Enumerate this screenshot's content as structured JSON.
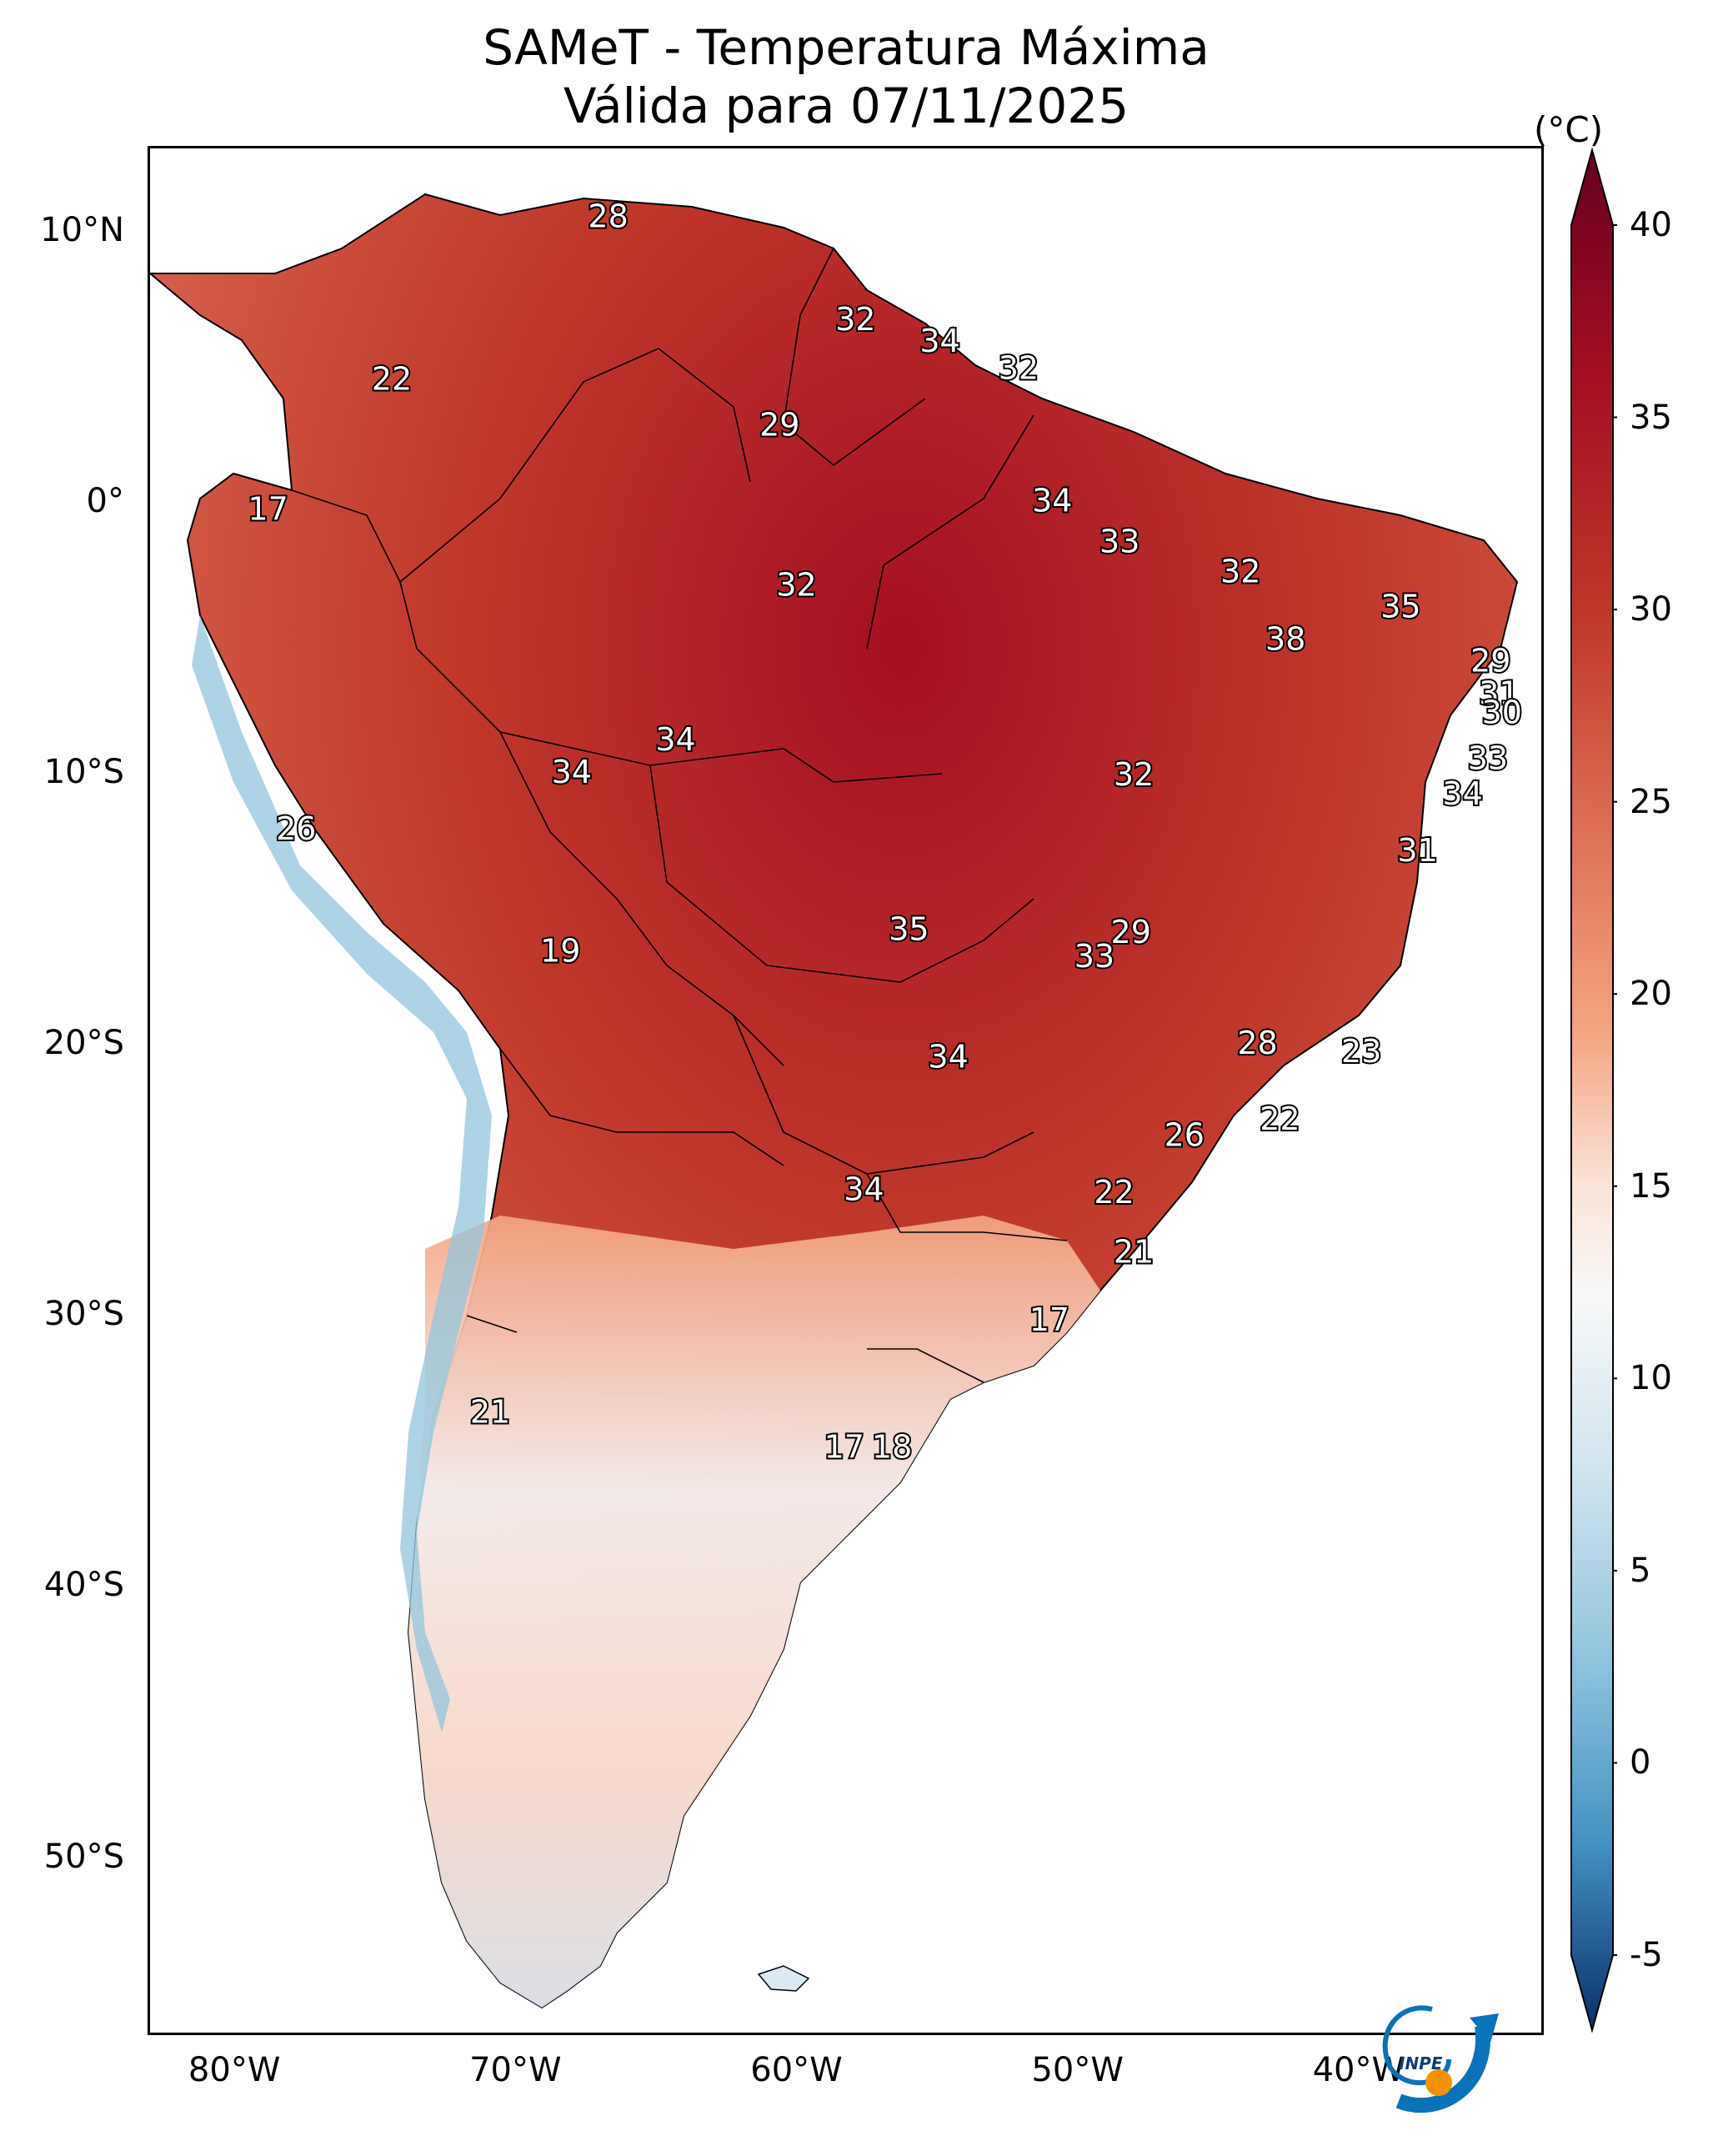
{
  "title": {
    "line1": "SAMeT - Temperatura Máxima",
    "line2": "Válida para 07/11/2025"
  },
  "map": {
    "extent": {
      "lon_min": -83,
      "lon_max": -33.5,
      "lat_min": -56.5,
      "lat_max": 13
    },
    "latitude_ticks": [
      {
        "lat": 10,
        "label": "10°N"
      },
      {
        "lat": 0,
        "label": "0°"
      },
      {
        "lat": -10,
        "label": "10°S"
      },
      {
        "lat": -20,
        "label": "20°S"
      },
      {
        "lat": -30,
        "label": "30°S"
      },
      {
        "lat": -40,
        "label": "40°S"
      },
      {
        "lat": -50,
        "label": "50°S"
      }
    ],
    "longitude_ticks": [
      {
        "lon": -80,
        "label": "80°W"
      },
      {
        "lon": -70,
        "label": "70°W"
      },
      {
        "lon": -60,
        "label": "60°W"
      },
      {
        "lon": -50,
        "label": "50°W"
      },
      {
        "lon": -40,
        "label": "40°W"
      }
    ],
    "temperature_labels": [
      {
        "lon": -66.7,
        "lat": 10.5,
        "text": "28"
      },
      {
        "lon": -74.4,
        "lat": 4.5,
        "text": "22"
      },
      {
        "lon": -57.9,
        "lat": 6.7,
        "text": "32"
      },
      {
        "lon": -54.9,
        "lat": 5.9,
        "text": "34"
      },
      {
        "lon": -52.1,
        "lat": 4.9,
        "text": "32"
      },
      {
        "lon": -60.6,
        "lat": 2.8,
        "text": "29"
      },
      {
        "lon": -78.8,
        "lat": -0.3,
        "text": "17"
      },
      {
        "lon": -50.9,
        "lat": 0.0,
        "text": "34"
      },
      {
        "lon": -48.5,
        "lat": -1.5,
        "text": "33"
      },
      {
        "lon": -60.0,
        "lat": -3.1,
        "text": "32"
      },
      {
        "lon": -44.2,
        "lat": -2.6,
        "text": "32"
      },
      {
        "lon": -38.5,
        "lat": -3.9,
        "text": "35"
      },
      {
        "lon": -42.6,
        "lat": -5.1,
        "text": "38"
      },
      {
        "lon": -35.3,
        "lat": -5.9,
        "text": "29"
      },
      {
        "lon": -35.0,
        "lat": -7.1,
        "text": "31"
      },
      {
        "lon": -34.9,
        "lat": -7.8,
        "text": "30"
      },
      {
        "lon": -35.4,
        "lat": -9.5,
        "text": "33"
      },
      {
        "lon": -36.3,
        "lat": -10.8,
        "text": "34"
      },
      {
        "lon": -64.3,
        "lat": -8.8,
        "text": "34"
      },
      {
        "lon": -68.0,
        "lat": -10.0,
        "text": "34"
      },
      {
        "lon": -48.0,
        "lat": -10.1,
        "text": "32"
      },
      {
        "lon": -77.8,
        "lat": -12.1,
        "text": "26"
      },
      {
        "lon": -37.9,
        "lat": -12.9,
        "text": "31"
      },
      {
        "lon": -56.0,
        "lat": -15.8,
        "text": "35"
      },
      {
        "lon": -48.1,
        "lat": -15.9,
        "text": "29"
      },
      {
        "lon": -49.4,
        "lat": -16.8,
        "text": "33"
      },
      {
        "lon": -68.4,
        "lat": -16.6,
        "text": "19"
      },
      {
        "lon": -43.6,
        "lat": -20.0,
        "text": "28"
      },
      {
        "lon": -39.9,
        "lat": -20.3,
        "text": "23"
      },
      {
        "lon": -54.6,
        "lat": -20.5,
        "text": "34"
      },
      {
        "lon": -42.8,
        "lat": -22.8,
        "text": "22"
      },
      {
        "lon": -46.2,
        "lat": -23.4,
        "text": "26"
      },
      {
        "lon": -48.7,
        "lat": -25.5,
        "text": "22"
      },
      {
        "lon": -57.6,
        "lat": -25.4,
        "text": "34"
      },
      {
        "lon": -48.0,
        "lat": -27.7,
        "text": "21"
      },
      {
        "lon": -51.0,
        "lat": -30.2,
        "text": "17"
      },
      {
        "lon": -70.9,
        "lat": -33.6,
        "text": "21"
      },
      {
        "lon": -58.3,
        "lat": -34.9,
        "text": "17"
      },
      {
        "lon": -56.6,
        "lat": -34.9,
        "text": "18"
      }
    ]
  },
  "colorbar": {
    "unit": "(°C)",
    "min": -5,
    "max": 40,
    "ticks": [
      "40",
      "35",
      "30",
      "25",
      "20",
      "15",
      "10",
      "5",
      "0",
      "-5"
    ],
    "colors": [
      "#0a2f6b",
      "#2166ac",
      "#4393c3",
      "#92c5de",
      "#d1e5f0",
      "#f7f7f7",
      "#fddbc7",
      "#f4a582",
      "#d6604d",
      "#b2182b",
      "#67001f"
    ]
  },
  "logo": {
    "text": "INPE"
  }
}
